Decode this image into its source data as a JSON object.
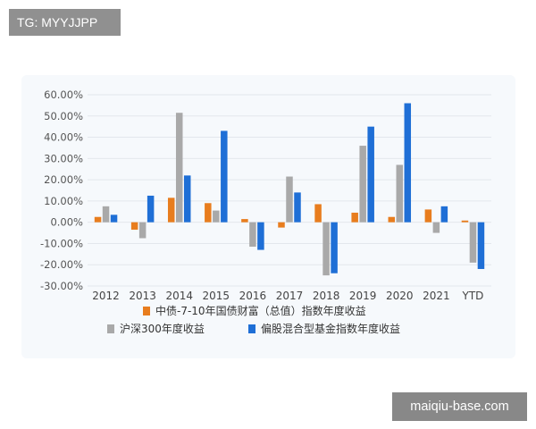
{
  "watermarks": {
    "top_left": "TG: MYYJJPP",
    "bottom_right": "maiqiu-base.com"
  },
  "chart_data": {
    "type": "bar",
    "categories": [
      "2012",
      "2013",
      "2014",
      "2015",
      "2016",
      "2017",
      "2018",
      "2019",
      "2020",
      "2021",
      "YTD"
    ],
    "series": [
      {
        "name": "中债-7-10年国债财富（总值）指数年度收益",
        "color": "#e87d1e",
        "values": [
          2.5,
          -3.5,
          11.5,
          9.0,
          1.5,
          -2.5,
          8.5,
          4.5,
          2.5,
          6.0,
          0.8
        ]
      },
      {
        "name": "沪深300年度收益",
        "color": "#a9a9a9",
        "values": [
          7.5,
          -7.5,
          51.5,
          5.5,
          -11.5,
          21.5,
          -25.0,
          36.0,
          27.0,
          -5.0,
          -19.0
        ]
      },
      {
        "name": "偏股混合型基金指数年度收益",
        "color": "#1f6fd6",
        "values": [
          3.5,
          12.5,
          22.0,
          43.0,
          -13.0,
          14.0,
          -24.0,
          45.0,
          56.0,
          7.5,
          -22.0
        ]
      }
    ],
    "yticks": [
      "60.00%",
      "50.00%",
      "40.00%",
      "30.00%",
      "20.00%",
      "10.00%",
      "0.00%",
      "-10.00%",
      "-20.00%",
      "-30.00%"
    ],
    "ylim": [
      -30,
      60
    ],
    "grid": true,
    "legend_position": "bottom"
  }
}
